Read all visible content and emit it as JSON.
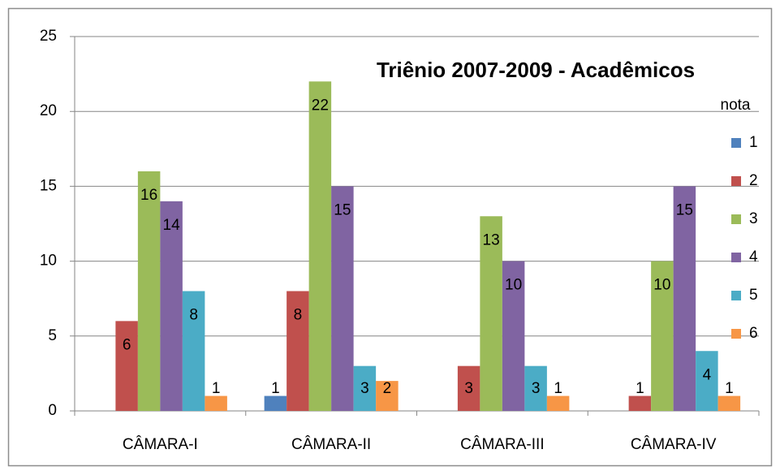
{
  "chart_data": {
    "type": "bar",
    "title": "Triênio 2007-2009 - Acadêmicos",
    "legend_title": "nota",
    "legend": "right",
    "grid": true,
    "categories": [
      "CÂMARA-I",
      "CÂMARA-II",
      "CÂMARA-III",
      "CÂMARA-IV"
    ],
    "series": [
      {
        "name": "1",
        "color": "#4f81bd",
        "values": [
          null,
          1,
          null,
          null
        ]
      },
      {
        "name": "2",
        "color": "#c0504d",
        "values": [
          6,
          8,
          3,
          1
        ]
      },
      {
        "name": "3",
        "color": "#9bbb59",
        "values": [
          16,
          22,
          13,
          10
        ]
      },
      {
        "name": "4",
        "color": "#8064a2",
        "values": [
          14,
          15,
          10,
          15
        ]
      },
      {
        "name": "5",
        "color": "#4bacc6",
        "values": [
          8,
          3,
          3,
          4
        ]
      },
      {
        "name": "6",
        "color": "#f79646",
        "values": [
          1,
          2,
          1,
          1
        ]
      }
    ],
    "ylim": [
      0,
      25
    ],
    "yticks": [
      0,
      5,
      10,
      15,
      20,
      25
    ]
  }
}
